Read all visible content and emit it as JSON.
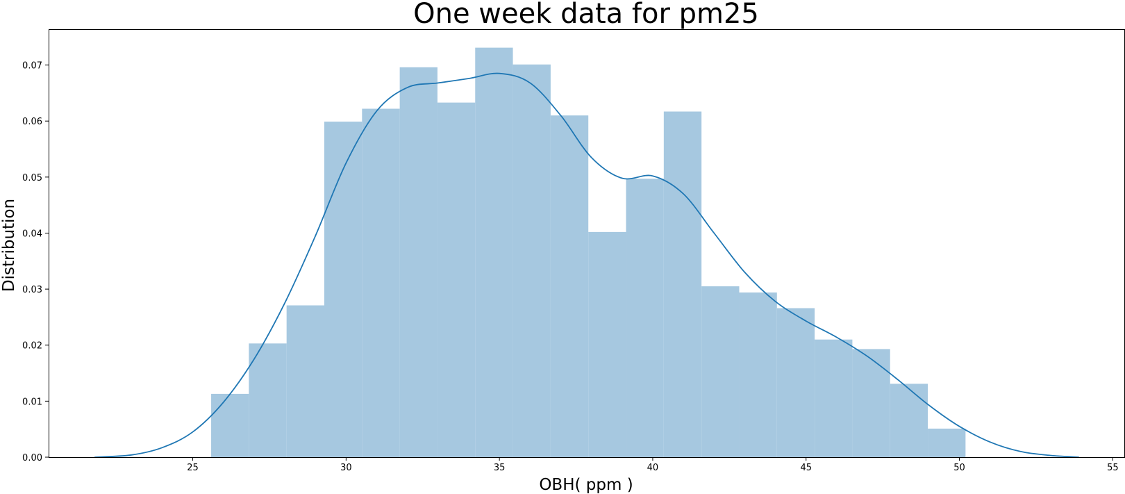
{
  "chart_data": {
    "type": "bar",
    "title": "One week data for pm25",
    "xlabel": "OBH( ppm )",
    "ylabel": "Distribution",
    "xlim": [
      20.3,
      55.4
    ],
    "ylim": [
      0,
      0.0764
    ],
    "x_ticks": [
      25,
      30,
      35,
      40,
      45,
      50,
      55
    ],
    "x_tick_labels": [
      "25",
      "30",
      "35",
      "40",
      "45",
      "50",
      "55"
    ],
    "y_ticks": [
      0,
      0.01,
      0.02,
      0.03,
      0.04,
      0.05,
      0.06,
      0.07
    ],
    "y_tick_labels": [
      "0.00",
      "0.01",
      "0.02",
      "0.03",
      "0.04",
      "0.05",
      "0.06",
      "0.07"
    ],
    "grid": false,
    "series": [
      {
        "kind": "histogram",
        "bin_edges": [
          25.6,
          26.83,
          28.06,
          29.29,
          30.52,
          31.75,
          32.98,
          34.21,
          35.44,
          36.67,
          37.9,
          39.13,
          40.36,
          41.59,
          42.82,
          44.05,
          45.28,
          46.51,
          47.74,
          48.97,
          50.2
        ],
        "values": [
          0.0113,
          0.0203,
          0.0271,
          0.0599,
          0.0622,
          0.0696,
          0.0633,
          0.0731,
          0.0701,
          0.061,
          0.0402,
          0.0497,
          0.0617,
          0.0305,
          0.0294,
          0.0266,
          0.021,
          0.0193,
          0.0131,
          0.0051
        ],
        "color": "#a6c8e0"
      },
      {
        "kind": "kde",
        "x": [
          21.8,
          23.0,
          24.0,
          25.0,
          26.0,
          27.0,
          28.0,
          29.0,
          30.0,
          31.0,
          32.0,
          33.0,
          34.0,
          35.0,
          36.0,
          37.0,
          38.0,
          39.0,
          40.0,
          41.0,
          42.0,
          43.0,
          44.0,
          45.0,
          46.0,
          47.0,
          48.0,
          49.0,
          50.0,
          51.0,
          52.0,
          53.0,
          53.9
        ],
        "y": [
          0.0,
          0.0004,
          0.0017,
          0.0045,
          0.0098,
          0.0175,
          0.0275,
          0.0395,
          0.0525,
          0.0618,
          0.066,
          0.0668,
          0.0676,
          0.0685,
          0.0668,
          0.061,
          0.0535,
          0.0498,
          0.0502,
          0.047,
          0.04,
          0.033,
          0.0278,
          0.0243,
          0.0214,
          0.018,
          0.0138,
          0.0093,
          0.0055,
          0.0027,
          0.001,
          0.0003,
          0.0
        ],
        "color": "#1f77b4"
      }
    ]
  }
}
